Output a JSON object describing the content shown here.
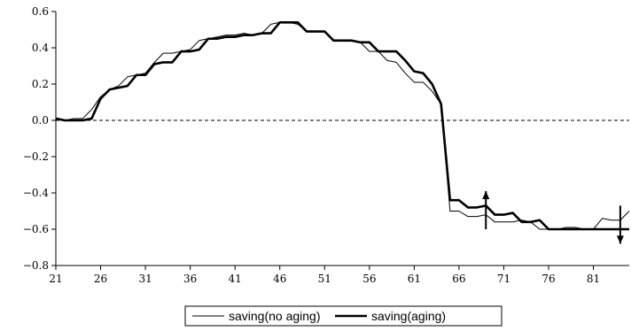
{
  "chart_data": {
    "type": "line",
    "x": [
      21,
      22,
      23,
      24,
      25,
      26,
      27,
      28,
      29,
      30,
      31,
      32,
      33,
      34,
      35,
      36,
      37,
      38,
      39,
      40,
      41,
      42,
      43,
      44,
      45,
      46,
      47,
      48,
      49,
      50,
      51,
      52,
      53,
      54,
      55,
      56,
      57,
      58,
      59,
      60,
      61,
      62,
      63,
      64,
      65,
      66,
      67,
      68,
      69,
      70,
      71,
      72,
      73,
      74,
      75,
      76,
      77,
      78,
      79,
      80,
      81,
      82,
      83,
      84,
      85
    ],
    "xticks": [
      21,
      26,
      31,
      36,
      41,
      46,
      51,
      56,
      61,
      66,
      71,
      76,
      81
    ],
    "xlim": [
      21,
      85
    ],
    "ylim": [
      -0.8,
      0.6
    ],
    "yticks": [
      -0.8,
      -0.6,
      -0.4,
      -0.2,
      0.0,
      0.2,
      0.4,
      0.6
    ],
    "ytick_labels": [
      "−0.8",
      "−0.6",
      "−0.4",
      "−0.2",
      "0.0",
      "0.2",
      "0.4",
      "0.6"
    ],
    "xlabel": "",
    "ylabel": "",
    "title": "",
    "grid": false,
    "reference_line": {
      "y": 0.0,
      "style": "dashed"
    },
    "legend_position": "bottom-center",
    "series": [
      {
        "name": "saving(no aging)",
        "style": "thin",
        "values": [
          0.01,
          0.0,
          0.01,
          0.01,
          0.06,
          0.13,
          0.17,
          0.19,
          0.24,
          0.25,
          0.26,
          0.32,
          0.37,
          0.37,
          0.38,
          0.39,
          0.44,
          0.45,
          0.46,
          0.47,
          0.47,
          0.48,
          0.47,
          0.48,
          0.53,
          0.54,
          0.54,
          0.53,
          0.49,
          0.49,
          0.49,
          0.44,
          0.44,
          0.44,
          0.43,
          0.38,
          0.38,
          0.33,
          0.32,
          0.26,
          0.21,
          0.21,
          0.16,
          0.09,
          -0.5,
          -0.5,
          -0.53,
          -0.53,
          -0.52,
          -0.56,
          -0.56,
          -0.56,
          -0.55,
          -0.56,
          -0.6,
          -0.6,
          -0.6,
          -0.59,
          -0.59,
          -0.6,
          -0.6,
          -0.54,
          -0.55,
          -0.55,
          -0.5
        ]
      },
      {
        "name": "saving(aging)",
        "style": "thick",
        "values": [
          0.01,
          0.0,
          0.0,
          0.0,
          0.01,
          0.12,
          0.17,
          0.18,
          0.19,
          0.25,
          0.25,
          0.31,
          0.32,
          0.32,
          0.38,
          0.38,
          0.39,
          0.45,
          0.45,
          0.46,
          0.46,
          0.47,
          0.47,
          0.48,
          0.48,
          0.54,
          0.54,
          0.54,
          0.49,
          0.49,
          0.49,
          0.44,
          0.44,
          0.44,
          0.43,
          0.43,
          0.38,
          0.38,
          0.38,
          0.33,
          0.27,
          0.26,
          0.2,
          0.09,
          -0.44,
          -0.44,
          -0.48,
          -0.48,
          -0.47,
          -0.52,
          -0.52,
          -0.51,
          -0.56,
          -0.56,
          -0.55,
          -0.6,
          -0.6,
          -0.6,
          -0.6,
          -0.6,
          -0.6,
          -0.6,
          -0.6,
          -0.6,
          -0.6
        ]
      }
    ],
    "annotations": [
      {
        "type": "arrow",
        "direction": "up",
        "x": 69,
        "from": -0.6,
        "to": -0.39
      },
      {
        "type": "arrow",
        "direction": "down",
        "x": 84,
        "from": -0.47,
        "to": -0.68
      }
    ]
  }
}
